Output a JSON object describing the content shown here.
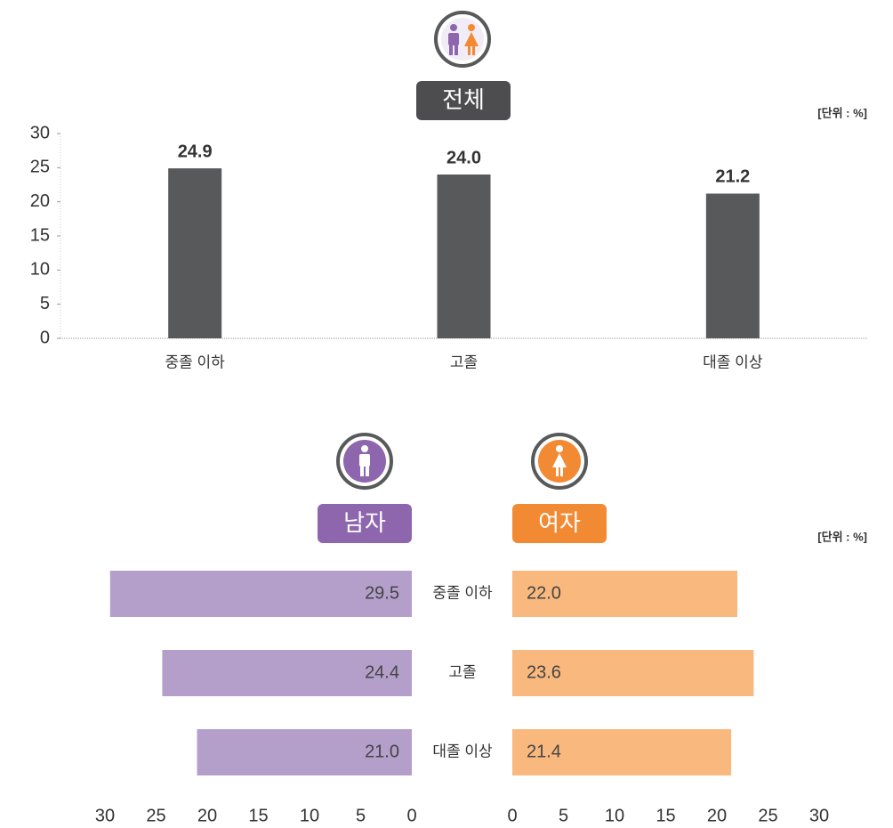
{
  "chart_data": [
    {
      "type": "bar",
      "title": "전체",
      "unit_label": "[단위 : %]",
      "categories": [
        "중졸 이하",
        "고졸",
        "대졸 이상"
      ],
      "values": [
        24.9,
        24.0,
        21.2
      ],
      "value_labels": [
        "24.9",
        "24.0",
        "21.2"
      ],
      "color": "#58595b",
      "title_color": "#4d4d4f",
      "ylim": [
        0,
        30
      ],
      "yticks": [
        0,
        5,
        10,
        15,
        20,
        25,
        30
      ]
    },
    {
      "type": "butterfly",
      "unit_label": "[단위 : %]",
      "categories": [
        "중졸 이하",
        "고졸",
        "대졸 이상"
      ],
      "series": [
        {
          "name": "남자",
          "color": "#b49fcb",
          "title_color": "#8e66ae",
          "values": [
            29.5,
            24.4,
            21.0
          ],
          "value_labels": [
            "29.5",
            "24.4",
            "21.0"
          ]
        },
        {
          "name": "여자",
          "color": "#f8b87e",
          "title_color": "#f28a33",
          "values": [
            22.0,
            23.6,
            21.4
          ],
          "value_labels": [
            "22.0",
            "23.6",
            "21.4"
          ]
        }
      ],
      "xlim": [
        0,
        30
      ],
      "xticks": [
        0,
        5,
        10,
        15,
        20,
        25,
        30
      ]
    }
  ]
}
